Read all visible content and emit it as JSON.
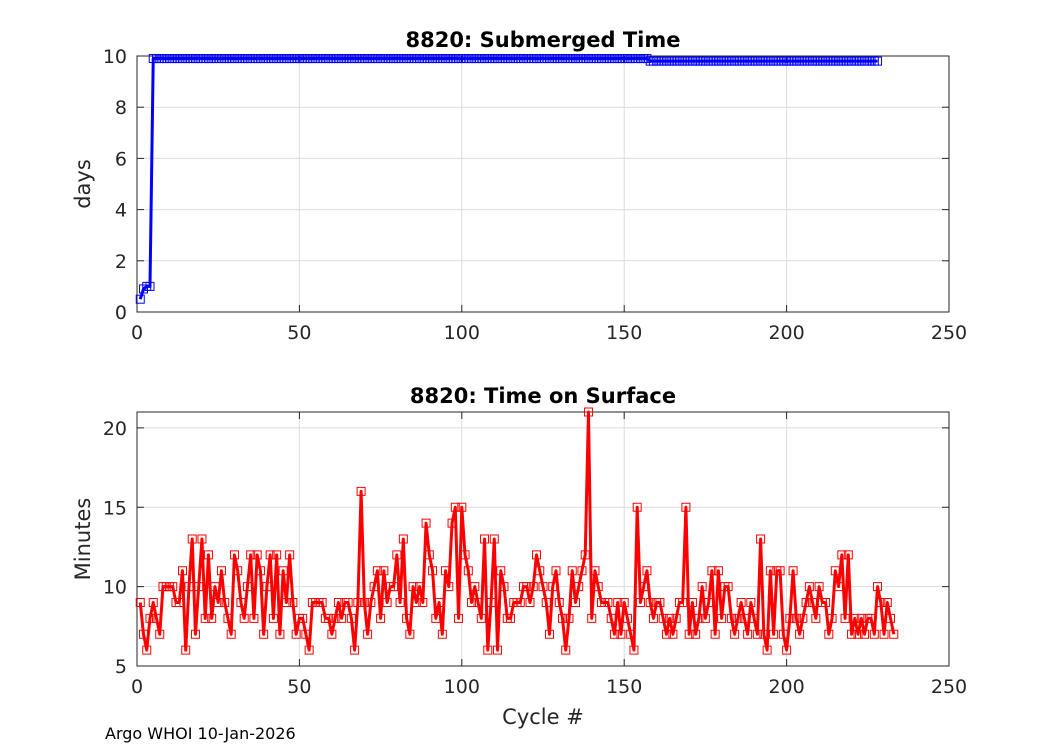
{
  "footer": "Argo WHOI 10-Jan-2026",
  "colors": {
    "series_top": "#0000ff",
    "series_bottom": "#ff0000",
    "grid": "#dcdcdc",
    "axis": "#262626"
  },
  "chart_data": [
    {
      "type": "line",
      "title": "8820: Submerged Time",
      "xlabel": "",
      "ylabel": "days",
      "xlim": [
        0,
        250
      ],
      "ylim": [
        0,
        10
      ],
      "xticks": [
        0,
        50,
        100,
        150,
        200,
        250
      ],
      "yticks": [
        0,
        2,
        4,
        6,
        8,
        10
      ],
      "xtick_labels": [
        "0",
        "50",
        "100",
        "150",
        "200",
        "250"
      ],
      "ytick_labels": [
        "0",
        "2",
        "4",
        "6",
        "8",
        "10"
      ],
      "grid": true,
      "marker": "square",
      "series": [
        {
          "color": "#0000ff",
          "segments": [
            {
              "x_from": 1,
              "x_to": 1,
              "y": 0.5
            },
            {
              "x_from": 2,
              "x_to": 2,
              "y": 0.9
            },
            {
              "x_from": 3,
              "x_to": 4,
              "y": 1.0
            },
            {
              "x_from": 5,
              "x_to": 157,
              "y": 9.9
            },
            {
              "x_from": 158,
              "x_to": 228,
              "y": 9.8
            }
          ]
        }
      ]
    },
    {
      "type": "line",
      "title": "8820: Time on Surface",
      "xlabel": "Cycle #",
      "ylabel": "Minutes",
      "xlim": [
        0,
        250
      ],
      "ylim": [
        5,
        21
      ],
      "xticks": [
        0,
        50,
        100,
        150,
        200,
        250
      ],
      "yticks": [
        5,
        10,
        15,
        20
      ],
      "xtick_labels": [
        "0",
        "50",
        "100",
        "150",
        "200",
        "250"
      ],
      "ytick_labels": [
        "5",
        "10",
        "15",
        "20"
      ],
      "grid": true,
      "marker": "square",
      "series": [
        {
          "color": "#ff0000",
          "x_start": 1,
          "values": [
            9,
            7,
            6,
            8,
            9,
            8,
            7,
            10,
            10,
            10,
            10,
            9,
            9,
            11,
            6,
            10,
            13,
            7,
            10,
            13,
            8,
            12,
            8,
            10,
            9,
            11,
            9,
            8,
            7,
            12,
            11,
            9,
            8,
            10,
            12,
            8,
            12,
            11,
            7,
            10,
            12,
            8,
            12,
            7,
            11,
            9,
            12,
            9,
            7,
            8,
            8,
            7,
            6,
            9,
            9,
            9,
            9,
            8,
            8,
            7,
            8,
            9,
            8,
            9,
            9,
            8,
            6,
            9,
            16,
            9,
            7,
            9,
            10,
            11,
            8,
            11,
            9,
            10,
            10,
            12,
            9,
            13,
            8,
            7,
            10,
            9,
            10,
            9,
            14,
            12,
            11,
            8,
            9,
            7,
            11,
            10,
            14,
            15,
            8,
            15,
            12,
            11,
            9,
            10,
            9,
            8,
            13,
            6,
            9,
            13,
            6,
            11,
            10,
            8,
            8,
            9,
            9,
            9,
            10,
            10,
            9,
            10,
            12,
            11,
            10,
            9,
            7,
            10,
            11,
            9,
            8,
            6,
            8,
            11,
            9,
            10,
            11,
            12,
            21,
            8,
            11,
            10,
            9,
            9,
            9,
            8,
            7,
            9,
            7,
            9,
            8,
            7,
            6,
            15,
            9,
            10,
            11,
            9,
            8,
            9,
            9,
            8,
            7,
            8,
            7,
            8,
            9,
            9,
            15,
            7,
            9,
            7,
            8,
            10,
            8,
            9,
            11,
            7,
            11,
            8,
            10,
            10,
            8,
            7,
            8,
            9,
            8,
            7,
            9,
            8,
            7,
            13,
            7,
            6,
            11,
            7,
            11,
            11,
            7,
            6,
            8,
            11,
            8,
            7,
            8,
            9,
            10,
            9,
            8,
            10,
            9,
            9,
            7,
            8,
            11,
            10,
            12,
            8,
            12,
            7,
            8,
            7,
            8,
            7,
            8,
            8,
            7,
            10,
            9,
            7,
            9,
            8,
            7
          ]
        }
      ]
    }
  ]
}
